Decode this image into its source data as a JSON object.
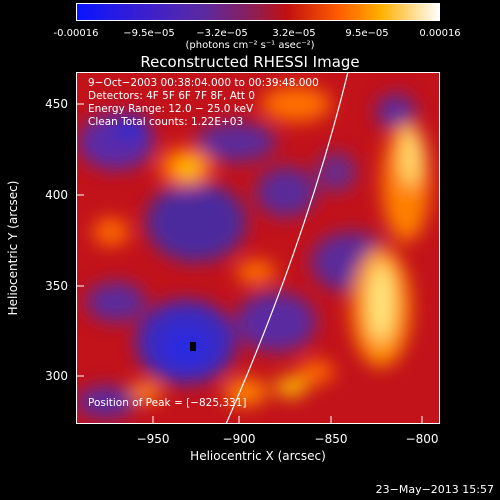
{
  "colorbar": {
    "ticks": [
      "-0.00016",
      "−9.5e−05",
      "−3.2e−05",
      "3.2e−05",
      "9.5e−05",
      "0.00016"
    ],
    "units": "(photons cm⁻² s⁻¹ asec⁻²)"
  },
  "title": "Reconstructed RHESSI Image",
  "info": {
    "time": "9−Oct−2003 00:38:04.000 to 00:39:48.000",
    "detectors": "Detectors: 4F 5F 6F 7F 8F, Att 0",
    "energy": "Energy Range: 12.0 − 25.0 keV",
    "clean": "Clean     Total counts: 1.22E+03",
    "peak": "Position of Peak = [−825,331]"
  },
  "axes": {
    "xlabel": "Heliocentric X (arcsec)",
    "ylabel": "Heliocentric Y (arcsec)",
    "xticks": [
      "−950",
      "−900",
      "−850",
      "−800"
    ],
    "yticks": [
      "450",
      "400",
      "350",
      "300"
    ]
  },
  "timestamp": "23−May−2013 15:57"
}
